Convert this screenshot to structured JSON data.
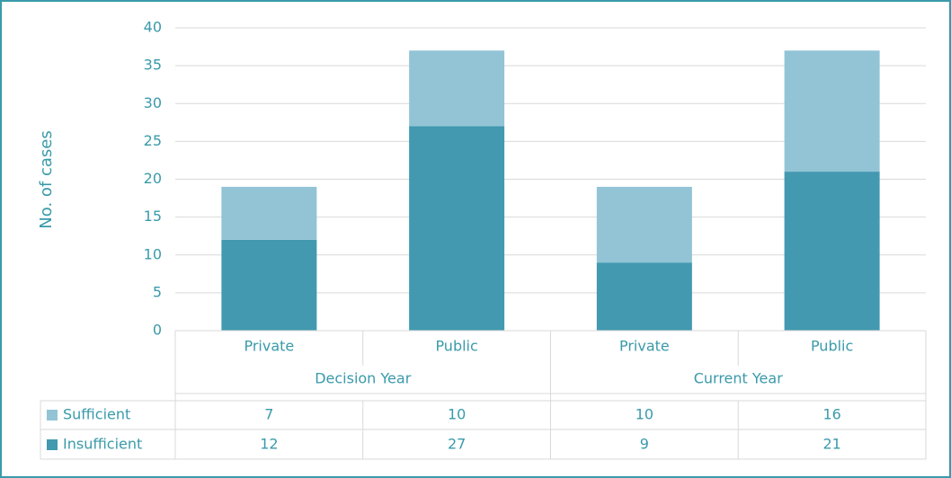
{
  "chart_data": {
    "type": "stacked_bar",
    "y_label": "No. of cases",
    "categories": [
      "Private",
      "Public",
      "Private",
      "Public"
    ],
    "groups": [
      "Decision Year",
      "Current Year"
    ],
    "series": [
      {
        "name": "Insufficient",
        "color": "#4299b0",
        "values": [
          12,
          27,
          9,
          21
        ]
      },
      {
        "name": "Sufficient",
        "color": "#92c4d6",
        "values": [
          7,
          10,
          10,
          16
        ]
      }
    ],
    "ylim": [
      0,
      40
    ],
    "yticks": [
      0,
      5,
      10,
      15,
      20,
      25,
      30,
      35,
      40
    ],
    "grid": true
  }
}
